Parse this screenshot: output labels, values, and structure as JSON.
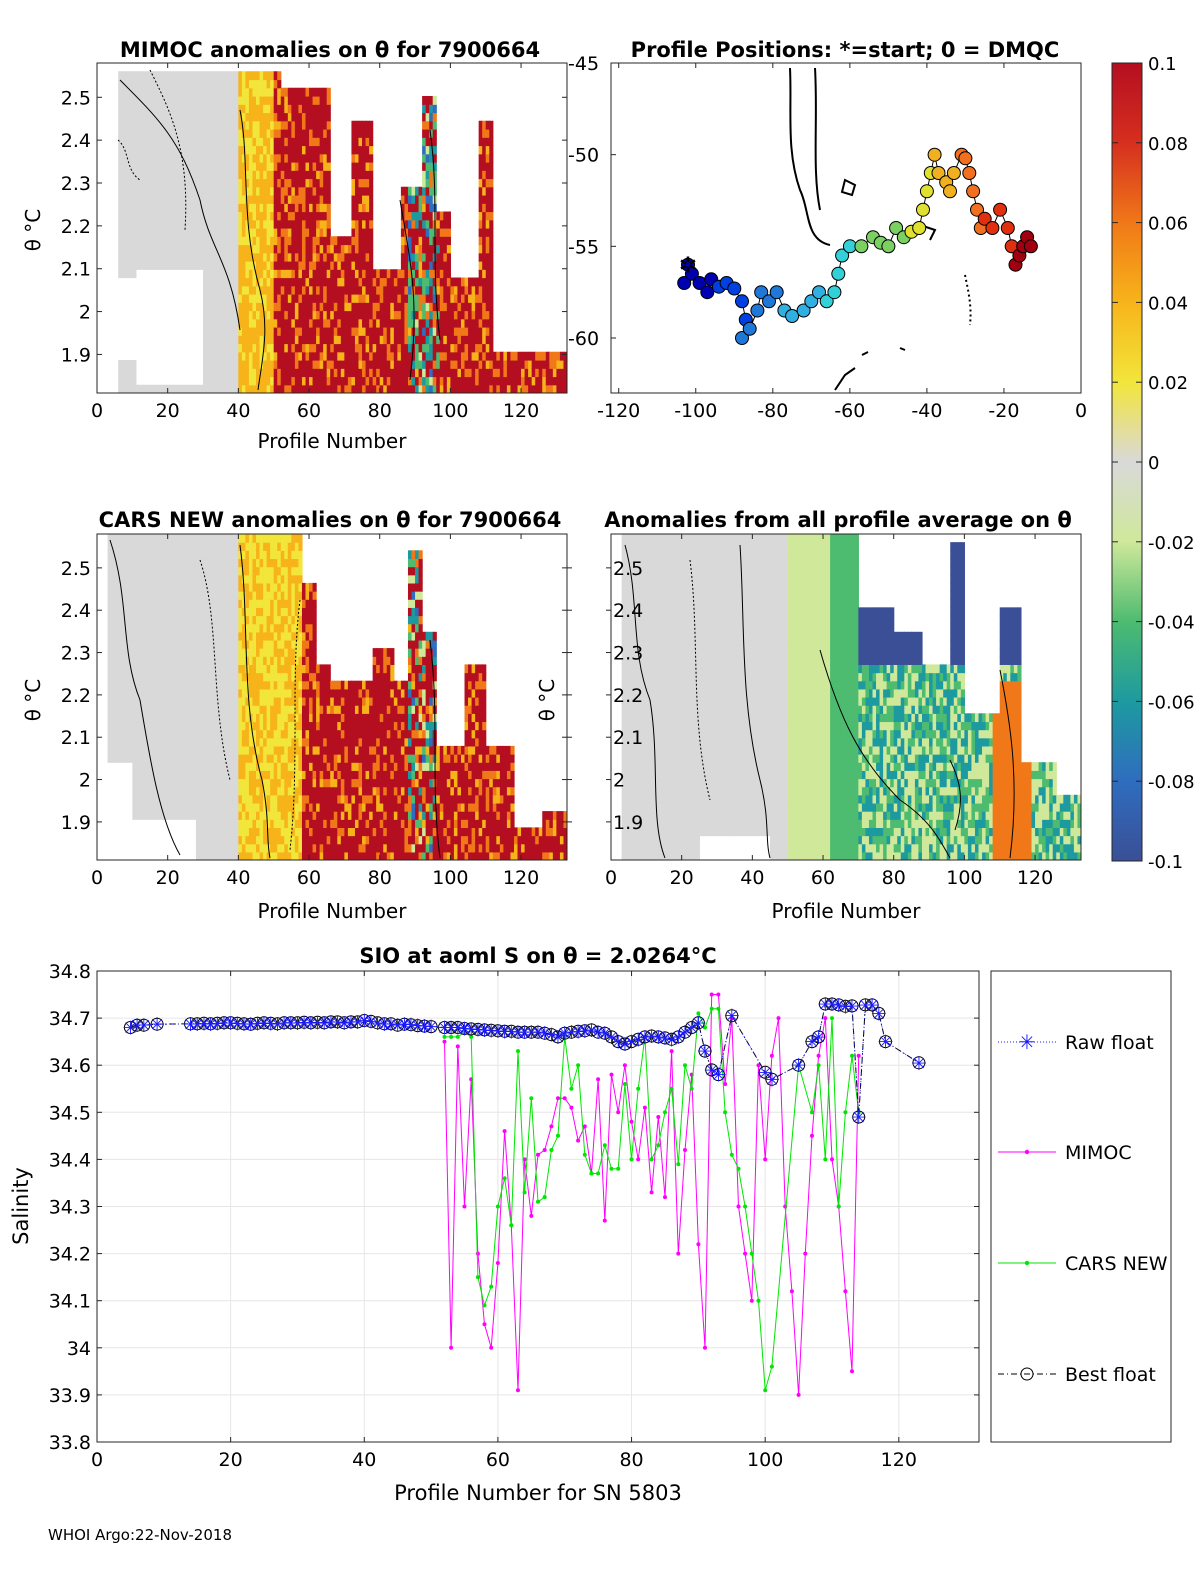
{
  "footer": "WHOI Argo:22-Nov-2018",
  "colorbar": {
    "ticks": [
      "0.1",
      "0.08",
      "0.06",
      "0.04",
      "0.02",
      "0",
      "-0.02",
      "-0.04",
      "-0.06",
      "-0.08",
      "-0.1"
    ],
    "range": [
      -0.1,
      0.1
    ]
  },
  "chart_data": [
    {
      "id": "mimoc",
      "type": "heatmap",
      "title": "MIMOC anomalies on θ  for 7900664",
      "xlabel": "Profile Number",
      "ylabel": "θ °C",
      "xlim": [
        0,
        133
      ],
      "ylim": [
        1.81,
        2.58
      ],
      "xticks": [
        "0",
        "20",
        "40",
        "60",
        "80",
        "100",
        "120"
      ],
      "yticks": [
        "1.9",
        "2",
        "2.1",
        "2.2",
        "2.3",
        "2.4",
        "2.5"
      ]
    },
    {
      "id": "positions",
      "type": "scatter",
      "title": "Profile Positions: *=start; 0 = DMQC",
      "xlim": [
        -122,
        0
      ],
      "ylim": [
        -63,
        -45
      ],
      "xticks": [
        "-120",
        "-100",
        "-80",
        "-60",
        "-40",
        "-20",
        "0"
      ],
      "yticks": [
        "-45",
        "-50",
        "-55",
        "-60"
      ],
      "track": [
        [
          -102,
          -56
        ],
        [
          -103,
          -57
        ],
        [
          -101,
          -56.5
        ],
        [
          -99,
          -57
        ],
        [
          -97,
          -57.5
        ],
        [
          -96,
          -56.8
        ],
        [
          -94,
          -57.2
        ],
        [
          -92,
          -57
        ],
        [
          -90,
          -57.3
        ],
        [
          -88,
          -58
        ],
        [
          -87,
          -59
        ],
        [
          -88,
          -60
        ],
        [
          -86,
          -59.5
        ],
        [
          -84,
          -58.5
        ],
        [
          -83,
          -57.5
        ],
        [
          -81,
          -58
        ],
        [
          -79,
          -57.5
        ],
        [
          -77,
          -58.5
        ],
        [
          -75,
          -58.8
        ],
        [
          -72,
          -58.5
        ],
        [
          -70,
          -58
        ],
        [
          -68,
          -57.5
        ],
        [
          -66,
          -58
        ],
        [
          -64,
          -57.5
        ],
        [
          -63,
          -56.5
        ],
        [
          -62,
          -55.5
        ],
        [
          -60,
          -55
        ],
        [
          -57,
          -55
        ],
        [
          -54,
          -54.5
        ],
        [
          -52,
          -54.8
        ],
        [
          -50,
          -55
        ],
        [
          -48,
          -54
        ],
        [
          -46,
          -54.5
        ],
        [
          -44,
          -54.2
        ],
        [
          -42,
          -54
        ],
        [
          -41,
          -53
        ],
        [
          -40,
          -52
        ],
        [
          -39,
          -51
        ],
        [
          -38,
          -50
        ],
        [
          -37,
          -51
        ],
        [
          -35,
          -51.5
        ],
        [
          -34,
          -52
        ],
        [
          -33,
          -51
        ],
        [
          -31,
          -50
        ],
        [
          -30,
          -50.2
        ],
        [
          -29,
          -51
        ],
        [
          -28,
          -52
        ],
        [
          -27,
          -53
        ],
        [
          -26,
          -54
        ],
        [
          -25,
          -53.5
        ],
        [
          -23,
          -54
        ],
        [
          -21,
          -53
        ],
        [
          -19,
          -54
        ],
        [
          -18,
          -55
        ],
        [
          -17,
          -56
        ],
        [
          -16,
          -55.5
        ],
        [
          -15,
          -55
        ],
        [
          -14,
          -54.5
        ],
        [
          -13,
          -55
        ]
      ]
    },
    {
      "id": "cars",
      "type": "heatmap",
      "title": "CARS NEW anomalies on θ for 7900664",
      "xlabel": "Profile Number",
      "ylabel": "θ °C",
      "xlim": [
        0,
        133
      ],
      "ylim": [
        1.81,
        2.58
      ],
      "xticks": [
        "0",
        "20",
        "40",
        "60",
        "80",
        "100",
        "120"
      ],
      "yticks": [
        "1.9",
        "2",
        "2.1",
        "2.2",
        "2.3",
        "2.4",
        "2.5"
      ]
    },
    {
      "id": "allprof",
      "type": "heatmap",
      "title": "Anomalies from all profile average on θ",
      "xlabel": "Profile Number",
      "ylabel": "θ °C",
      "xlim": [
        0,
        133
      ],
      "ylim": [
        1.81,
        2.58
      ],
      "xticks": [
        "0",
        "20",
        "40",
        "60",
        "80",
        "100",
        "120"
      ],
      "yticks": [
        "1.9",
        "2",
        "2.1",
        "2.2",
        "2.3",
        "2.4",
        "2.5"
      ]
    },
    {
      "id": "salinity",
      "type": "line",
      "title": "SIO at aoml S on θ = 2.0264°C",
      "xlabel": "Profile Number for SN 5803",
      "ylabel": "Salinity",
      "xlim": [
        0,
        132
      ],
      "ylim": [
        33.8,
        34.8
      ],
      "xticks": [
        "0",
        "20",
        "40",
        "60",
        "80",
        "100",
        "120"
      ],
      "yticks": [
        "33.8",
        "33.9",
        "34",
        "34.1",
        "34.2",
        "34.3",
        "34.4",
        "34.5",
        "34.6",
        "34.7",
        "34.8"
      ],
      "legend": [
        "Raw float",
        "MIMOC",
        "CARS NEW",
        "Best float"
      ],
      "series": [
        {
          "name": "Raw float",
          "x": [
            5,
            6,
            7,
            9,
            14,
            15,
            16,
            17,
            18,
            19,
            20,
            21,
            22,
            23,
            24,
            25,
            26,
            27,
            28,
            29,
            30,
            31,
            32,
            33,
            34,
            35,
            36,
            37,
            38,
            39,
            40,
            41,
            42,
            43,
            44,
            45,
            46,
            47,
            48,
            49,
            50,
            52,
            53,
            54,
            55,
            56,
            57,
            58,
            59,
            60,
            61,
            62,
            63,
            64,
            65,
            66,
            67,
            68,
            69,
            70,
            71,
            72,
            73,
            74,
            75,
            76,
            77,
            78,
            79,
            80,
            81,
            82,
            83,
            84,
            85,
            86,
            87,
            88,
            89,
            90,
            91,
            92,
            93,
            95,
            100,
            101,
            105,
            107,
            108,
            109,
            110,
            111,
            112,
            113,
            114,
            115,
            116,
            117,
            118,
            123
          ],
          "y": [
            34.68,
            34.685,
            34.685,
            34.687,
            34.688,
            34.688,
            34.689,
            34.688,
            34.689,
            34.69,
            34.69,
            34.689,
            34.688,
            34.687,
            34.689,
            34.69,
            34.689,
            34.688,
            34.69,
            34.69,
            34.69,
            34.691,
            34.69,
            34.691,
            34.69,
            34.692,
            34.692,
            34.69,
            34.692,
            34.692,
            34.695,
            34.693,
            34.69,
            34.688,
            34.688,
            34.685,
            34.687,
            34.686,
            34.684,
            34.683,
            34.682,
            34.68,
            34.68,
            34.68,
            34.678,
            34.677,
            34.676,
            34.675,
            34.674,
            34.673,
            34.672,
            34.672,
            34.67,
            34.67,
            34.67,
            34.67,
            34.668,
            34.665,
            34.66,
            34.668,
            34.67,
            34.672,
            34.673,
            34.675,
            34.67,
            34.668,
            34.66,
            34.65,
            34.645,
            34.65,
            34.655,
            34.66,
            34.662,
            34.66,
            34.658,
            34.655,
            34.66,
            34.67,
            34.68,
            34.69,
            34.63,
            34.59,
            34.58,
            34.705,
            34.585,
            34.57,
            34.6,
            34.65,
            34.66,
            34.73,
            34.73,
            34.728,
            34.725,
            34.726,
            34.49,
            34.728,
            34.728,
            34.71,
            34.65,
            34.605
          ]
        },
        {
          "name": "MIMOC",
          "x": [
            52,
            53,
            54,
            55,
            56,
            57,
            58,
            59,
            60,
            61,
            62,
            63,
            64,
            65,
            66,
            67,
            68,
            69,
            70,
            71,
            72,
            73,
            74,
            75,
            76,
            77,
            78,
            79,
            80,
            81,
            82,
            83,
            84,
            85,
            86,
            87,
            88,
            89,
            90,
            91,
            92,
            93,
            94,
            95,
            96,
            97,
            98,
            99,
            100,
            101,
            102,
            103,
            104,
            105,
            106,
            107,
            108,
            109,
            110,
            111,
            112,
            113,
            114
          ],
          "y": [
            34.65,
            34.0,
            34.64,
            34.3,
            34.57,
            34.2,
            34.05,
            34.0,
            34.18,
            34.46,
            34.26,
            33.91,
            34.4,
            34.28,
            34.41,
            34.42,
            34.47,
            34.53,
            34.53,
            34.51,
            34.44,
            34.47,
            34.37,
            34.57,
            34.27,
            34.58,
            34.5,
            34.6,
            34.48,
            34.4,
            34.51,
            34.33,
            34.49,
            34.32,
            34.63,
            34.2,
            34.42,
            34.58,
            34.22,
            34.0,
            34.75,
            34.75,
            34.56,
            34.7,
            34.3,
            34.2,
            34.1,
            34.6,
            34.4,
            34.62,
            34.7,
            34.3,
            34.12,
            33.9,
            34.2,
            34.45,
            34.62,
            34.7,
            34.4,
            34.3,
            34.12,
            33.95,
            34.62
          ]
        },
        {
          "name": "CARS NEW",
          "x": [
            52,
            53,
            54,
            55,
            56,
            57,
            58,
            59,
            60,
            61,
            62,
            63,
            64,
            65,
            66,
            67,
            68,
            69,
            70,
            71,
            72,
            73,
            74,
            75,
            76,
            77,
            78,
            79,
            80,
            81,
            82,
            83,
            84,
            85,
            86,
            87,
            88,
            89,
            90,
            91,
            92,
            93,
            94,
            95,
            96,
            97,
            98,
            99,
            100,
            101,
            105,
            107,
            108,
            109,
            110,
            111,
            112,
            113,
            114
          ],
          "y": [
            34.66,
            34.66,
            34.66,
            34.67,
            34.66,
            34.15,
            34.09,
            34.13,
            34.3,
            34.36,
            34.26,
            34.63,
            34.33,
            34.53,
            34.31,
            34.32,
            34.42,
            34.45,
            34.66,
            34.55,
            34.6,
            34.41,
            34.37,
            34.37,
            34.43,
            34.38,
            34.38,
            34.56,
            34.4,
            34.55,
            34.66,
            34.4,
            34.43,
            34.5,
            34.55,
            34.39,
            34.6,
            34.55,
            34.71,
            34.68,
            34.72,
            34.72,
            34.5,
            34.41,
            34.38,
            34.3,
            34.2,
            34.1,
            33.91,
            33.96,
            34.6,
            34.5,
            34.6,
            34.4,
            34.7,
            34.3,
            34.5,
            34.62,
            34.5
          ]
        },
        {
          "name": "Best float",
          "x": [
            5,
            6,
            7,
            9,
            14,
            15,
            16,
            17,
            18,
            19,
            20,
            21,
            22,
            23,
            24,
            25,
            26,
            27,
            28,
            29,
            30,
            31,
            32,
            33,
            34,
            35,
            36,
            37,
            38,
            39,
            40,
            41,
            42,
            43,
            44,
            45,
            46,
            47,
            48,
            49,
            50,
            52,
            53,
            54,
            55,
            56,
            57,
            58,
            59,
            60,
            61,
            62,
            63,
            64,
            65,
            66,
            67,
            68,
            69,
            70,
            71,
            72,
            73,
            74,
            75,
            76,
            77,
            78,
            79,
            80,
            81,
            82,
            83,
            84,
            85,
            86,
            87,
            88,
            89,
            90,
            91,
            92,
            93,
            95,
            100,
            101,
            105,
            107,
            108,
            109,
            110,
            111,
            112,
            113,
            114,
            115,
            116,
            117,
            118,
            123
          ],
          "y": [
            34.68,
            34.685,
            34.685,
            34.687,
            34.688,
            34.688,
            34.689,
            34.688,
            34.689,
            34.69,
            34.69,
            34.689,
            34.688,
            34.687,
            34.689,
            34.69,
            34.689,
            34.688,
            34.69,
            34.69,
            34.69,
            34.691,
            34.69,
            34.691,
            34.69,
            34.692,
            34.692,
            34.69,
            34.692,
            34.692,
            34.695,
            34.693,
            34.69,
            34.688,
            34.688,
            34.685,
            34.687,
            34.686,
            34.684,
            34.683,
            34.682,
            34.68,
            34.68,
            34.68,
            34.678,
            34.677,
            34.676,
            34.675,
            34.674,
            34.673,
            34.672,
            34.672,
            34.67,
            34.67,
            34.67,
            34.67,
            34.668,
            34.665,
            34.66,
            34.668,
            34.67,
            34.672,
            34.673,
            34.675,
            34.67,
            34.668,
            34.66,
            34.65,
            34.645,
            34.65,
            34.655,
            34.66,
            34.662,
            34.66,
            34.658,
            34.655,
            34.66,
            34.67,
            34.68,
            34.69,
            34.63,
            34.59,
            34.58,
            34.705,
            34.585,
            34.57,
            34.6,
            34.65,
            34.66,
            34.73,
            34.73,
            34.728,
            34.725,
            34.726,
            34.49,
            34.728,
            34.728,
            34.71,
            34.65,
            34.605
          ]
        }
      ]
    }
  ]
}
